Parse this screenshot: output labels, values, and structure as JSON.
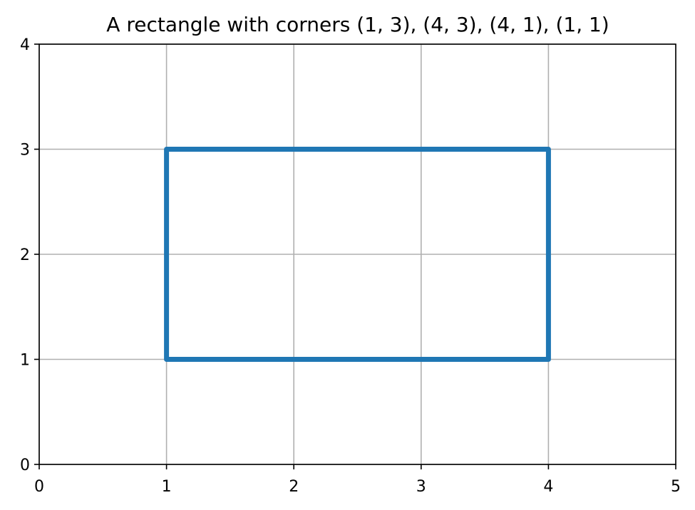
{
  "chart_data": {
    "type": "line",
    "title": "A rectangle with corners (1, 3), (4, 3), (4, 1), (1, 1)",
    "xlabel": "",
    "ylabel": "",
    "xlim": [
      0,
      5
    ],
    "ylim": [
      0,
      4
    ],
    "x_ticks": [
      0,
      1,
      2,
      3,
      4,
      5
    ],
    "y_ticks": [
      0,
      1,
      2,
      3,
      4
    ],
    "grid": true,
    "legend": "none",
    "series": [
      {
        "color": "#1f77b4",
        "x": [
          1,
          4,
          4,
          1,
          1
        ],
        "y": [
          3,
          3,
          1,
          1,
          3
        ]
      }
    ]
  }
}
